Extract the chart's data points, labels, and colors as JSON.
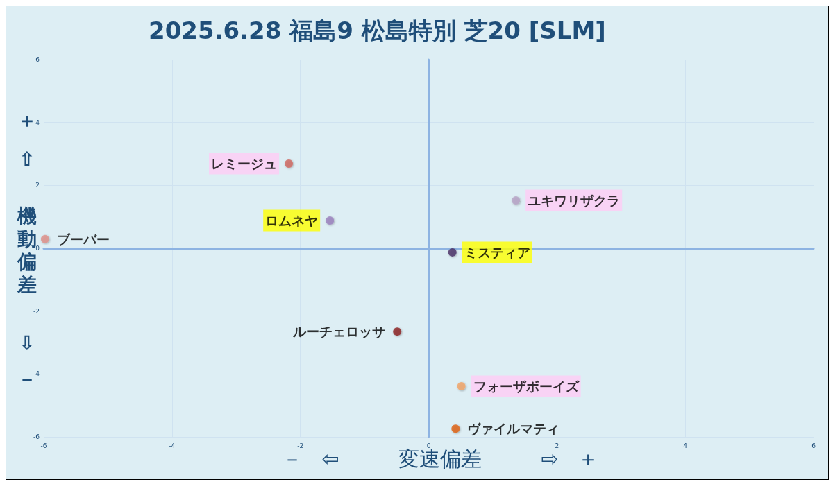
{
  "chart_data": {
    "type": "scatter",
    "title": "2025.6.28 福島9 松島特別 芝20 [SLM]",
    "xlabel": "－ ⇦ 変速偏差 ⇨ ＋",
    "ylabel": "＋ ⇧ 機動偏差 ⇩ －",
    "xlim": [
      -6,
      6
    ],
    "xticks": [
      -6,
      -4,
      -2,
      0,
      2,
      4,
      6
    ],
    "ylim": [
      -6,
      6
    ],
    "yticks": [
      -6,
      -4,
      -2,
      0,
      2,
      4,
      6
    ],
    "grid": true,
    "legend": false,
    "marker": "circle",
    "series": [
      {
        "name": "レミージュ",
        "color": "#d0675f",
        "x": [
          -2.18
        ],
        "values": [
          2.69
        ]
      },
      {
        "name": "ユキワリザクラ",
        "color": "#b7a2c6",
        "x": [
          1.36
        ],
        "values": [
          1.52
        ]
      },
      {
        "name": "ロムネヤ",
        "color": "#9a7fbe",
        "x": [
          -1.54
        ],
        "values": [
          0.88
        ]
      },
      {
        "name": "ブーバー",
        "color": "#e0908a",
        "x": [
          -5.98
        ],
        "values": [
          0.29
        ]
      },
      {
        "name": "ミスティア",
        "color": "#4b2f66",
        "x": [
          0.37
        ],
        "values": [
          -0.13
        ]
      },
      {
        "name": "ルーチェロッサ",
        "color": "#8c1f1f",
        "x": [
          -0.49
        ],
        "values": [
          -2.65
        ]
      },
      {
        "name": "フォーザボーイズ",
        "color": "#f2a465",
        "x": [
          0.51
        ],
        "values": [
          -4.39
        ]
      },
      {
        "name": "ヴァイルマティ",
        "color": "#e0600f",
        "x": [
          0.42
        ],
        "values": [
          -5.74
        ]
      }
    ]
  }
}
